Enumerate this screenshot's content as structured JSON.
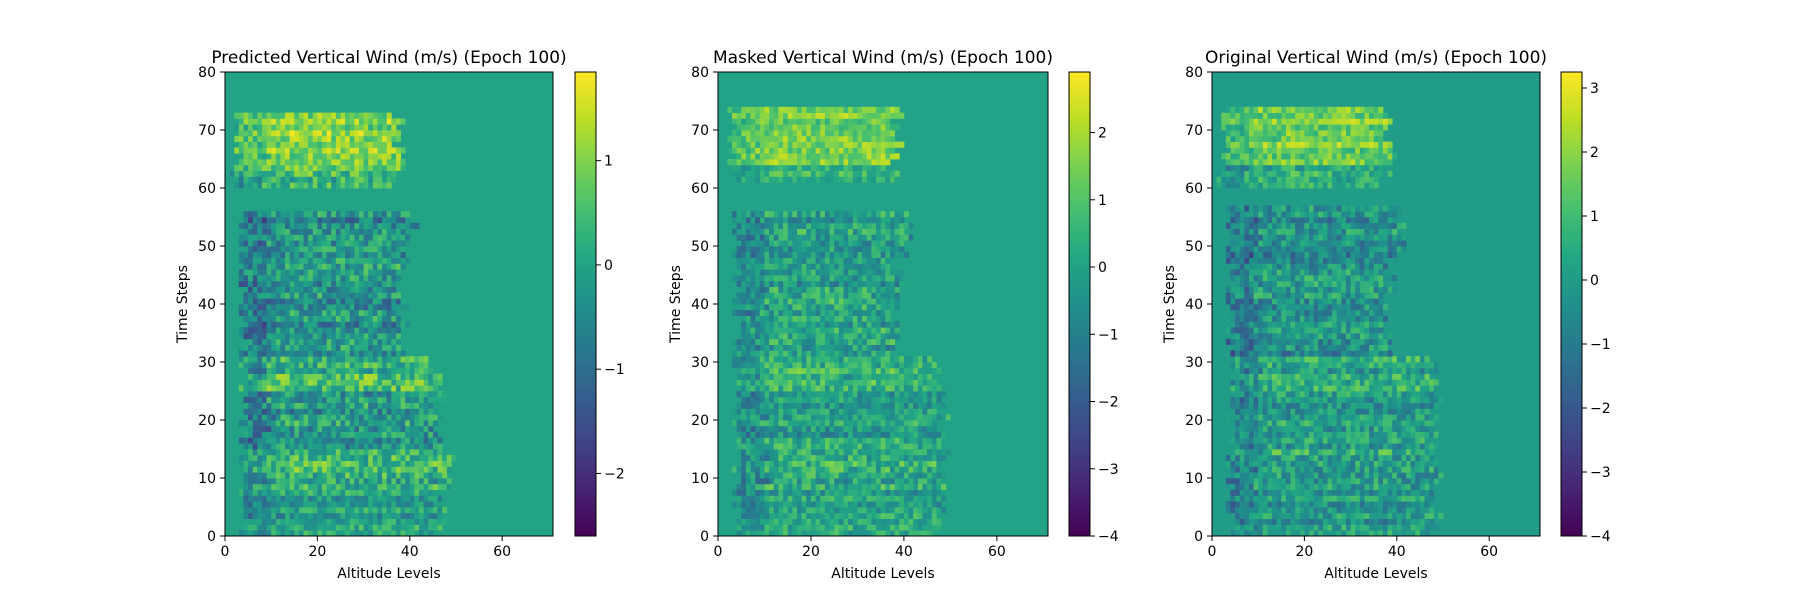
{
  "chart_data": [
    {
      "type": "heatmap",
      "title": "Predicted Vertical Wind (m/s) (Epoch 100)",
      "xlabel": "Altitude Levels",
      "ylabel": "Time Steps",
      "xlim": [
        0,
        71
      ],
      "ylim": [
        0,
        80
      ],
      "xticks": [
        0,
        20,
        40,
        60
      ],
      "yticks": [
        0,
        10,
        20,
        30,
        40,
        50,
        60,
        70,
        80
      ],
      "colormap": "viridis",
      "colorbar": {
        "min": -2.6,
        "max": 1.85,
        "ticks": [
          1,
          0,
          -1,
          -2
        ],
        "tick_labels": [
          "1",
          "0",
          "−1",
          "−2"
        ]
      },
      "regions": [
        {
          "t": [
            0,
            8
          ],
          "alt": [
            3,
            48
          ],
          "mean": -0.1,
          "amp": 0.6
        },
        {
          "t": [
            8,
            15
          ],
          "alt": [
            3,
            50
          ],
          "mean": 0.2,
          "amp": 0.8
        },
        {
          "t": [
            15,
            25
          ],
          "alt": [
            3,
            48
          ],
          "mean": -0.2,
          "amp": 0.8
        },
        {
          "t": [
            25,
            31
          ],
          "alt": [
            3,
            47
          ],
          "mean": 0.3,
          "amp": 0.8
        },
        {
          "t": [
            31,
            48
          ],
          "alt": [
            3,
            40
          ],
          "mean": -0.3,
          "amp": 0.8
        },
        {
          "t": [
            48,
            56
          ],
          "alt": [
            3,
            42
          ],
          "mean": -0.4,
          "amp": 0.8
        },
        {
          "t": [
            60,
            63
          ],
          "alt": [
            1,
            39
          ],
          "mean": 0.3,
          "amp": 0.8
        },
        {
          "t": [
            63,
            73
          ],
          "alt": [
            2,
            39
          ],
          "mean": 1.0,
          "amp": 0.6
        }
      ],
      "background": 0.0
    },
    {
      "type": "heatmap",
      "title": "Masked Vertical Wind (m/s) (Epoch 100)",
      "xlabel": "Altitude Levels",
      "ylabel": "Time Steps",
      "xlim": [
        0,
        71
      ],
      "ylim": [
        0,
        80
      ],
      "xticks": [
        0,
        20,
        40,
        60
      ],
      "yticks": [
        0,
        10,
        20,
        30,
        40,
        50,
        60,
        70,
        80
      ],
      "colormap": "viridis",
      "colorbar": {
        "min": -4,
        "max": 2.9,
        "ticks": [
          2,
          1,
          0,
          -1,
          -2,
          -3,
          -4
        ],
        "tick_labels": [
          "2",
          "1",
          "0",
          "−1",
          "−2",
          "−3",
          "−4"
        ]
      },
      "regions": [
        {
          "t": [
            0,
            8
          ],
          "alt": [
            3,
            50
          ],
          "mean": 0.0,
          "amp": 0.9
        },
        {
          "t": [
            8,
            15
          ],
          "alt": [
            3,
            50
          ],
          "mean": 0.2,
          "amp": 1.1
        },
        {
          "t": [
            15,
            25
          ],
          "alt": [
            3,
            50
          ],
          "mean": 0.0,
          "amp": 1.0
        },
        {
          "t": [
            25,
            31
          ],
          "alt": [
            3,
            49
          ],
          "mean": 0.3,
          "amp": 1.0
        },
        {
          "t": [
            31,
            48
          ],
          "alt": [
            3,
            40
          ],
          "mean": 0.0,
          "amp": 1.1
        },
        {
          "t": [
            48,
            56
          ],
          "alt": [
            3,
            43
          ],
          "mean": -0.2,
          "amp": 1.1
        },
        {
          "t": [
            61,
            64
          ],
          "alt": [
            2,
            39
          ],
          "mean": 0.6,
          "amp": 0.8
        },
        {
          "t": [
            64,
            74
          ],
          "alt": [
            2,
            40
          ],
          "mean": 1.5,
          "amp": 0.8
        }
      ],
      "background": 0.0
    },
    {
      "type": "heatmap",
      "title": "Original Vertical Wind (m/s) (Epoch 100)",
      "xlabel": "Altitude Levels",
      "ylabel": "Time Steps",
      "xlim": [
        0,
        71
      ],
      "ylim": [
        0,
        80
      ],
      "xticks": [
        0,
        20,
        40,
        60
      ],
      "yticks": [
        0,
        10,
        20,
        30,
        40,
        50,
        60,
        70,
        80
      ],
      "colormap": "viridis",
      "colorbar": {
        "min": -4,
        "max": 3.25,
        "ticks": [
          3,
          2,
          1,
          0,
          -1,
          -2,
          -3,
          -4
        ],
        "tick_labels": [
          "3",
          "2",
          "1",
          "0",
          "−1",
          "−2",
          "−3",
          "−4"
        ]
      },
      "regions": [
        {
          "t": [
            0,
            8
          ],
          "alt": [
            3,
            50
          ],
          "mean": -0.1,
          "amp": 1.0
        },
        {
          "t": [
            8,
            15
          ],
          "alt": [
            3,
            50
          ],
          "mean": 0.2,
          "amp": 1.2
        },
        {
          "t": [
            15,
            25
          ],
          "alt": [
            3,
            50
          ],
          "mean": 0.0,
          "amp": 1.1
        },
        {
          "t": [
            25,
            31
          ],
          "alt": [
            3,
            49
          ],
          "mean": 0.3,
          "amp": 1.1
        },
        {
          "t": [
            31,
            48
          ],
          "alt": [
            3,
            40
          ],
          "mean": -0.3,
          "amp": 1.2
        },
        {
          "t": [
            48,
            57
          ],
          "alt": [
            3,
            42
          ],
          "mean": -0.3,
          "amp": 1.2
        },
        {
          "t": [
            60,
            64
          ],
          "alt": [
            1,
            39
          ],
          "mean": 0.5,
          "amp": 1.0
        },
        {
          "t": [
            64,
            74
          ],
          "alt": [
            2,
            40
          ],
          "mean": 1.6,
          "amp": 0.9
        }
      ],
      "background": 0.0
    }
  ]
}
